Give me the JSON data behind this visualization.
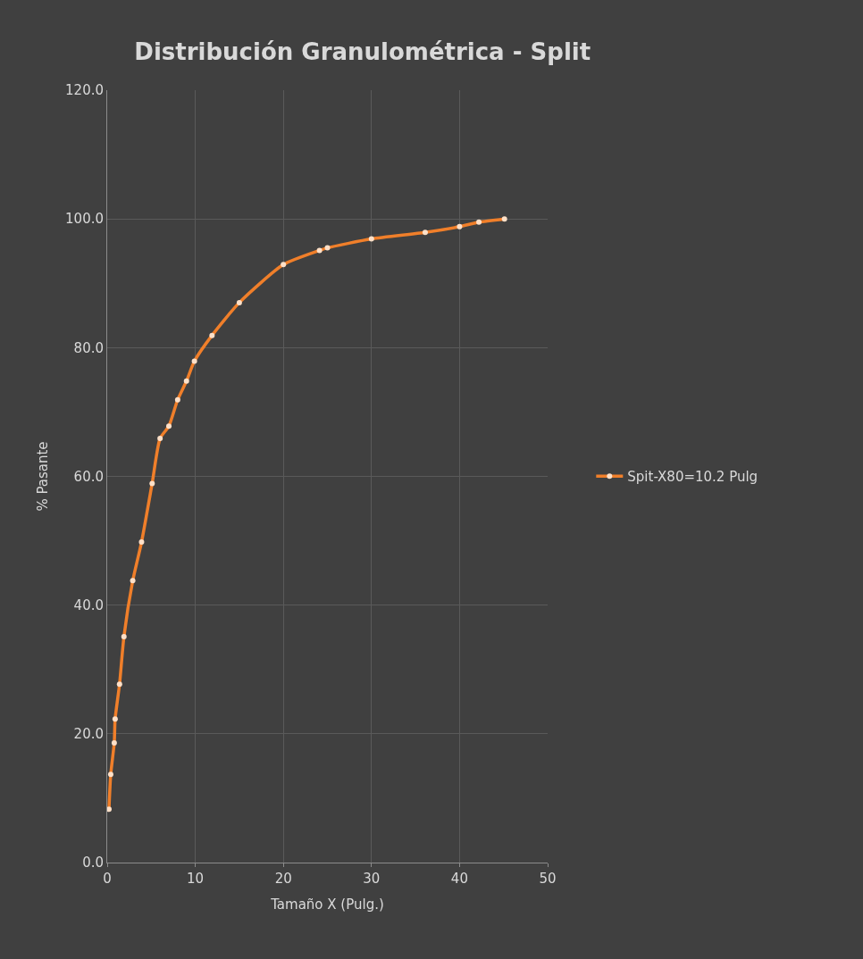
{
  "chart_data": {
    "type": "line",
    "title": "Distribución Granulométrica - Split",
    "xlabel": "Tamaño X (Pulg.)",
    "ylabel": "% Pasante",
    "x": [
      0.2,
      0.4,
      0.8,
      0.9,
      1.4,
      1.9,
      2.9,
      3.9,
      5.1,
      6.0,
      7.0,
      8.0,
      9.0,
      9.9,
      11.9,
      15.0,
      20.0,
      24.1,
      25.0,
      30.0,
      36.1,
      40.0,
      42.2,
      45.1
    ],
    "series": [
      {
        "name": "Spit-X80=10.2 Pulg",
        "color": "#f07f2a",
        "values": [
          8.3,
          13.7,
          18.6,
          22.3,
          27.7,
          35.1,
          43.8,
          49.8,
          58.9,
          65.9,
          67.8,
          71.9,
          74.8,
          77.9,
          81.9,
          87.0,
          92.9,
          95.1,
          95.5,
          96.9,
          97.9,
          98.8,
          99.5,
          100.0
        ]
      }
    ],
    "xlim": [
      0,
      50
    ],
    "xticks": [
      0,
      10,
      20,
      30,
      40,
      50
    ],
    "ylim": [
      0,
      120
    ],
    "yticks": [
      {
        "value": 0,
        "label": "0.0"
      },
      {
        "value": 20,
        "label": "20.0"
      },
      {
        "value": 40,
        "label": "40.0"
      },
      {
        "value": 60,
        "label": "60.0"
      },
      {
        "value": 80,
        "label": "80.0"
      },
      {
        "value": 100,
        "label": "100.0"
      },
      {
        "value": 120,
        "label": "120.0"
      }
    ],
    "grid": true,
    "legend": "right",
    "marker": "circle",
    "line_style": "solid"
  }
}
